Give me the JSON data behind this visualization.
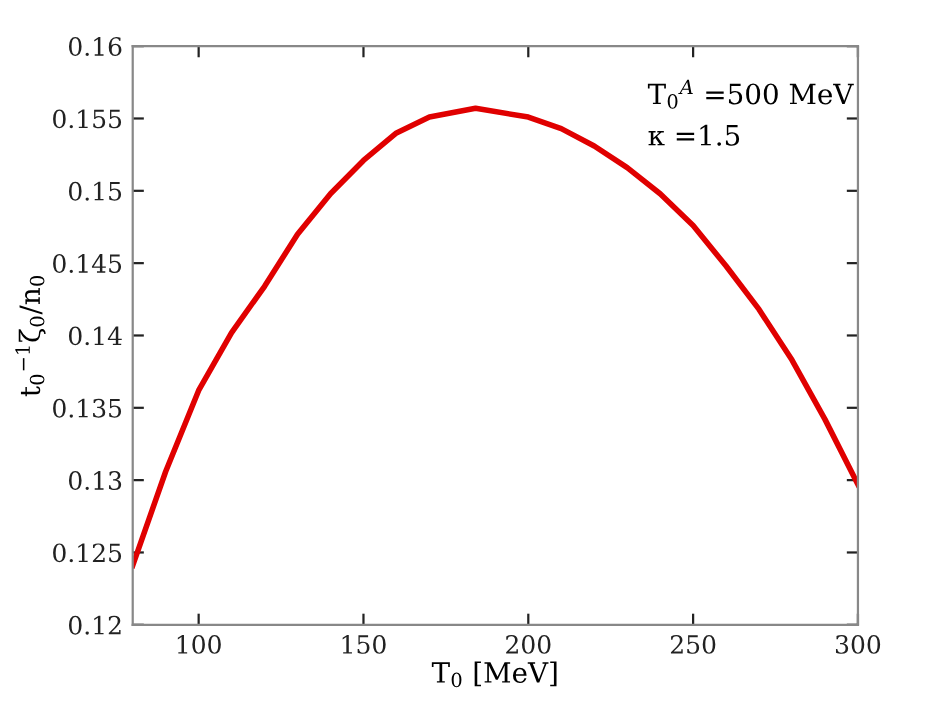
{
  "chart_data": {
    "type": "line",
    "xlabel": "T$_{0}$ [MeV]",
    "ylabel": "t$_{0}$$^{−1}$ζ$_{0}$/n$_{0}$",
    "annotations": [
      "T$_{0}$$^{A}$ =500 MeV",
      "κ =1.5"
    ],
    "x": [
      80,
      90,
      100,
      110,
      120,
      130,
      140,
      150,
      160,
      170,
      184,
      200,
      210,
      220,
      230,
      240,
      250,
      260,
      270,
      280,
      290,
      300
    ],
    "series": [
      {
        "color": "#e00000",
        "values": [
          0.1241,
          0.1306,
          0.1362,
          0.1402,
          0.1434,
          0.147,
          0.1498,
          0.1521,
          0.154,
          0.1551,
          0.1557,
          0.1551,
          0.1543,
          0.1531,
          0.1516,
          0.1498,
          0.1476,
          0.1448,
          0.1418,
          0.1383,
          0.1342,
          0.1297
        ]
      }
    ],
    "xlim": [
      80,
      300
    ],
    "xticks": [
      100,
      150,
      200,
      250,
      300
    ],
    "ylim": [
      0.12,
      0.16
    ],
    "yticks": [
      0.12,
      0.125,
      0.13,
      0.135,
      0.14,
      0.145,
      0.15,
      0.155,
      0.16
    ],
    "grid": false,
    "marker": "none",
    "line_style": "solid"
  }
}
